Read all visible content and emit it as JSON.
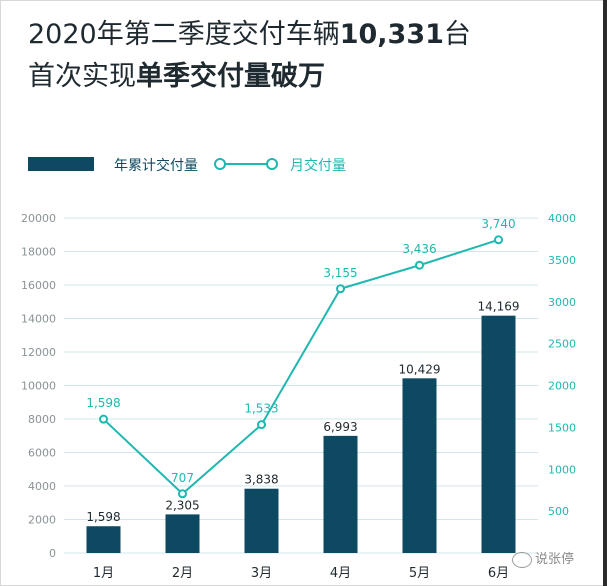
{
  "headline": {
    "line1_pre": "2020年第二季度交付车辆",
    "line1_bold": "10,331",
    "line1_post": "台",
    "line2_pre": "首次实现",
    "line2_bold": "单季交付量破万"
  },
  "watermark": "说张停",
  "colors": {
    "bar": "#0d4a62",
    "line": "#1fb8b0",
    "grid": "#cfe7ea",
    "axis_text": "#8a9397",
    "right_axis_text": "#1fb8b0"
  },
  "chart_data": {
    "type": "bar",
    "categories": [
      "1月",
      "2月",
      "3月",
      "4月",
      "5月",
      "6月"
    ],
    "series": [
      {
        "name": "年累计交付量",
        "type": "bar",
        "axis": "left",
        "values": [
          1598,
          2305,
          3838,
          6993,
          10429,
          14169
        ],
        "labels": [
          "1,598",
          "2,305",
          "3,838",
          "6,993",
          "10,429",
          "14,169"
        ]
      },
      {
        "name": "月交付量",
        "type": "line",
        "axis": "right",
        "values": [
          1598,
          707,
          1533,
          3155,
          3436,
          3740
        ],
        "labels": [
          "1,598",
          "707",
          "1,533",
          "3,155",
          "3,436",
          "3,740"
        ]
      }
    ],
    "y_left": {
      "range": [
        0,
        20000
      ],
      "ticks": [
        "0",
        "2000",
        "4000",
        "6000",
        "8000",
        "10000",
        "12000",
        "14000",
        "16000",
        "18000",
        "20000"
      ]
    },
    "y_right": {
      "range": [
        0,
        4000
      ],
      "ticks": [
        "500",
        "1000",
        "1500",
        "2000",
        "2500",
        "3000",
        "3500",
        "4000"
      ]
    },
    "grid": true,
    "legend_position": "top-left"
  }
}
